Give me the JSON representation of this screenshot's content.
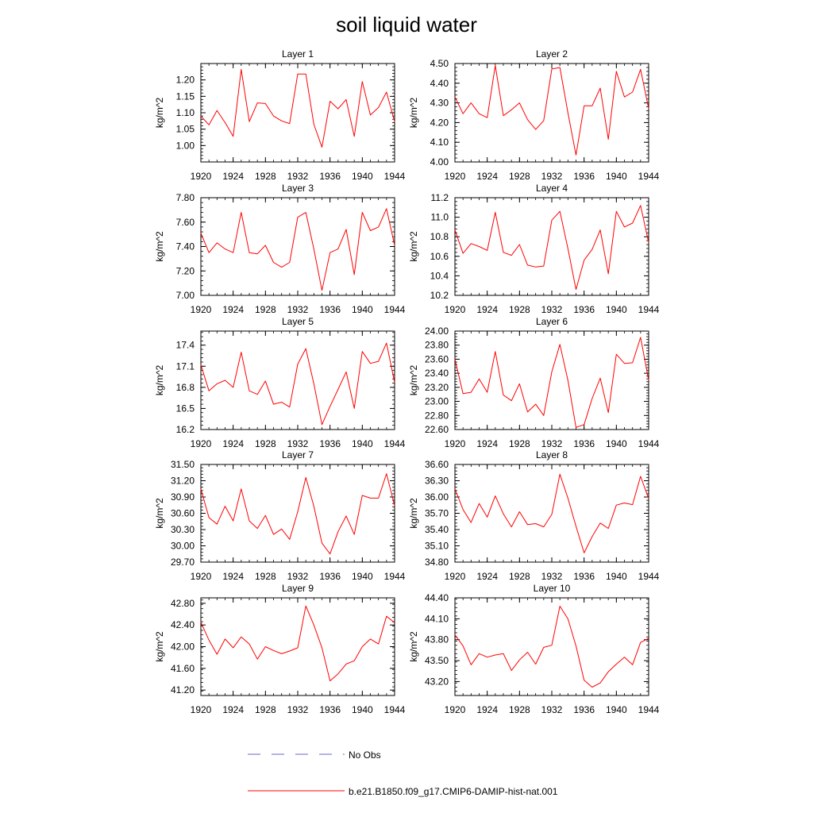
{
  "title": "soil liquid water",
  "colors": {
    "model": "#ff0000",
    "obs": "#6464c8",
    "axis": "#000000"
  },
  "legend": {
    "obs_label": "No Obs",
    "model_label": "b.e21.B1850.f09_g17.CMIP6-DAMIP-hist-nat.001"
  },
  "chart_data": [
    {
      "type": "line",
      "title": "Layer 1",
      "ylabel": "kg/m^2",
      "xlim": [
        1920,
        1944
      ],
      "xticks": [
        1920,
        1924,
        1928,
        1932,
        1936,
        1940,
        1944
      ],
      "ylim": [
        0.95,
        1.25
      ],
      "yticks": [
        "1.00",
        "1.05",
        "1.10",
        "1.15",
        "1.20"
      ],
      "yminor": 0.01,
      "series": [
        {
          "x": [
            1920,
            1921,
            1922,
            1923,
            1924,
            1925,
            1926,
            1927,
            1928,
            1929,
            1930,
            1931,
            1932,
            1933,
            1934,
            1935,
            1936,
            1937,
            1938,
            1939,
            1940,
            1941,
            1942,
            1943,
            1944
          ],
          "values": [
            1.09,
            1.063,
            1.107,
            1.07,
            1.028,
            1.232,
            1.073,
            1.13,
            1.128,
            1.09,
            1.075,
            1.067,
            1.218,
            1.218,
            1.065,
            0.995,
            1.135,
            1.112,
            1.14,
            1.028,
            1.195,
            1.093,
            1.116,
            1.163,
            1.073
          ]
        }
      ]
    },
    {
      "type": "line",
      "title": "Layer 2",
      "ylabel": "kg/m^2",
      "xlim": [
        1920,
        1944
      ],
      "xticks": [
        1920,
        1924,
        1928,
        1932,
        1936,
        1940,
        1944
      ],
      "ylim": [
        4.0,
        4.5
      ],
      "yticks": [
        "4.00",
        "4.10",
        "4.20",
        "4.30",
        "4.40",
        "4.50"
      ],
      "yminor": 0.02,
      "series": [
        {
          "x": [
            1920,
            1921,
            1922,
            1923,
            1924,
            1925,
            1926,
            1927,
            1928,
            1929,
            1930,
            1931,
            1932,
            1933,
            1934,
            1935,
            1936,
            1937,
            1938,
            1939,
            1940,
            1941,
            1942,
            1943,
            1944
          ],
          "values": [
            4.33,
            4.245,
            4.3,
            4.245,
            4.225,
            4.49,
            4.235,
            4.265,
            4.3,
            4.215,
            4.165,
            4.21,
            4.472,
            4.48,
            4.25,
            4.035,
            4.285,
            4.285,
            4.375,
            4.115,
            4.46,
            4.33,
            4.355,
            4.47,
            4.27
          ]
        }
      ]
    },
    {
      "type": "line",
      "title": "Layer 3",
      "ylabel": "kg/m^2",
      "xlim": [
        1920,
        1944
      ],
      "xticks": [
        1920,
        1924,
        1928,
        1932,
        1936,
        1940,
        1944
      ],
      "ylim": [
        7.0,
        7.8
      ],
      "yticks": [
        "7.00",
        "7.20",
        "7.40",
        "7.60",
        "7.80"
      ],
      "yminor": 0.04,
      "series": [
        {
          "x": [
            1920,
            1921,
            1922,
            1923,
            1924,
            1925,
            1926,
            1927,
            1928,
            1929,
            1930,
            1931,
            1932,
            1933,
            1934,
            1935,
            1936,
            1937,
            1938,
            1939,
            1940,
            1941,
            1942,
            1943,
            1944
          ],
          "values": [
            7.51,
            7.35,
            7.43,
            7.38,
            7.35,
            7.68,
            7.35,
            7.34,
            7.41,
            7.27,
            7.23,
            7.27,
            7.64,
            7.68,
            7.38,
            7.04,
            7.35,
            7.38,
            7.54,
            7.17,
            7.68,
            7.53,
            7.56,
            7.71,
            7.41
          ]
        }
      ]
    },
    {
      "type": "line",
      "title": "Layer 4",
      "ylabel": "kg/m^2",
      "xlim": [
        1920,
        1944
      ],
      "xticks": [
        1920,
        1924,
        1928,
        1932,
        1936,
        1940,
        1944
      ],
      "ylim": [
        10.2,
        11.2
      ],
      "yticks": [
        "10.2",
        "10.4",
        "10.6",
        "10.8",
        "11.0",
        "11.2"
      ],
      "yminor": 0.04,
      "series": [
        {
          "x": [
            1920,
            1921,
            1922,
            1923,
            1924,
            1925,
            1926,
            1927,
            1928,
            1929,
            1930,
            1931,
            1932,
            1933,
            1934,
            1935,
            1936,
            1937,
            1938,
            1939,
            1940,
            1941,
            1942,
            1943,
            1944
          ],
          "values": [
            10.87,
            10.63,
            10.73,
            10.7,
            10.66,
            11.05,
            10.64,
            10.61,
            10.72,
            10.51,
            10.49,
            10.5,
            10.97,
            11.06,
            10.68,
            10.26,
            10.56,
            10.67,
            10.87,
            10.42,
            11.06,
            10.9,
            10.94,
            11.12,
            10.74
          ]
        }
      ]
    },
    {
      "type": "line",
      "title": "Layer 5",
      "ylabel": "kg/m^2",
      "xlim": [
        1920,
        1944
      ],
      "xticks": [
        1920,
        1924,
        1928,
        1932,
        1936,
        1940,
        1944
      ],
      "ylim": [
        16.2,
        17.6
      ],
      "yticks": [
        "16.2",
        "16.5",
        "16.8",
        "17.1",
        "17.4"
      ],
      "yminor": 0.06,
      "series": [
        {
          "x": [
            1920,
            1921,
            1922,
            1923,
            1924,
            1925,
            1926,
            1927,
            1928,
            1929,
            1930,
            1931,
            1932,
            1933,
            1934,
            1935,
            1936,
            1937,
            1938,
            1939,
            1940,
            1941,
            1942,
            1943,
            1944
          ],
          "values": [
            17.12,
            16.75,
            16.85,
            16.9,
            16.8,
            17.3,
            16.75,
            16.7,
            16.89,
            16.56,
            16.59,
            16.52,
            17.13,
            17.35,
            16.85,
            16.27,
            16.53,
            16.77,
            17.02,
            16.5,
            17.31,
            17.14,
            17.17,
            17.43,
            16.87
          ]
        }
      ]
    },
    {
      "type": "line",
      "title": "Layer 6",
      "ylabel": "kg/m^2",
      "xlim": [
        1920,
        1944
      ],
      "xticks": [
        1920,
        1924,
        1928,
        1932,
        1936,
        1940,
        1944
      ],
      "ylim": [
        22.6,
        24.0
      ],
      "yticks": [
        "22.60",
        "22.80",
        "23.00",
        "23.20",
        "23.40",
        "23.60",
        "23.80",
        "24.00"
      ],
      "yminor": 0.04,
      "series": [
        {
          "x": [
            1920,
            1921,
            1922,
            1923,
            1924,
            1925,
            1926,
            1927,
            1928,
            1929,
            1930,
            1931,
            1932,
            1933,
            1934,
            1935,
            1936,
            1937,
            1938,
            1939,
            1940,
            1941,
            1942,
            1943,
            1944
          ],
          "values": [
            23.6,
            23.11,
            23.13,
            23.32,
            23.13,
            23.71,
            23.09,
            23.01,
            23.25,
            22.85,
            22.96,
            22.8,
            23.42,
            23.81,
            23.3,
            22.63,
            22.67,
            23.04,
            23.33,
            22.84,
            23.67,
            23.54,
            23.55,
            23.91,
            23.3
          ]
        }
      ]
    },
    {
      "type": "line",
      "title": "Layer 7",
      "ylabel": "kg/m^2",
      "xlim": [
        1920,
        1944
      ],
      "xticks": [
        1920,
        1924,
        1928,
        1932,
        1936,
        1940,
        1944
      ],
      "ylim": [
        29.7,
        31.5
      ],
      "yticks": [
        "29.70",
        "30.00",
        "30.30",
        "30.60",
        "30.90",
        "31.20",
        "31.50"
      ],
      "yminor": 0.06,
      "series": [
        {
          "x": [
            1920,
            1921,
            1922,
            1923,
            1924,
            1925,
            1926,
            1927,
            1928,
            1929,
            1930,
            1931,
            1932,
            1933,
            1934,
            1935,
            1936,
            1937,
            1938,
            1939,
            1940,
            1941,
            1942,
            1943,
            1944
          ],
          "values": [
            31.05,
            30.52,
            30.4,
            30.73,
            30.46,
            31.05,
            30.46,
            30.32,
            30.56,
            30.21,
            30.31,
            30.12,
            30.63,
            31.26,
            30.73,
            30.05,
            29.85,
            30.26,
            30.55,
            30.21,
            30.93,
            30.88,
            30.88,
            31.33,
            30.74
          ]
        }
      ]
    },
    {
      "type": "line",
      "title": "Layer 8",
      "ylabel": "kg/m^2",
      "xlim": [
        1920,
        1944
      ],
      "xticks": [
        1920,
        1924,
        1928,
        1932,
        1936,
        1940,
        1944
      ],
      "ylim": [
        34.8,
        36.6
      ],
      "yticks": [
        "34.80",
        "35.10",
        "35.40",
        "35.70",
        "36.00",
        "36.30",
        "36.60"
      ],
      "yminor": 0.06,
      "series": [
        {
          "x": [
            1920,
            1921,
            1922,
            1923,
            1924,
            1925,
            1926,
            1927,
            1928,
            1929,
            1930,
            1931,
            1932,
            1933,
            1934,
            1935,
            1936,
            1937,
            1938,
            1939,
            1940,
            1941,
            1942,
            1943,
            1944
          ],
          "values": [
            36.15,
            35.77,
            35.53,
            35.88,
            35.63,
            36.02,
            35.69,
            35.45,
            35.73,
            35.49,
            35.51,
            35.45,
            35.68,
            36.42,
            35.98,
            35.46,
            34.97,
            35.27,
            35.52,
            35.42,
            35.85,
            35.89,
            35.86,
            36.38,
            35.97
          ]
        }
      ]
    },
    {
      "type": "line",
      "title": "Layer 9",
      "ylabel": "kg/m^2",
      "xlim": [
        1920,
        1944
      ],
      "xticks": [
        1920,
        1924,
        1928,
        1932,
        1936,
        1940,
        1944
      ],
      "ylim": [
        41.1,
        42.9
      ],
      "yticks": [
        "41.20",
        "41.60",
        "42.00",
        "42.40",
        "42.80"
      ],
      "yminor": 0.08,
      "series": [
        {
          "x": [
            1920,
            1921,
            1922,
            1923,
            1924,
            1925,
            1926,
            1927,
            1928,
            1929,
            1930,
            1931,
            1932,
            1933,
            1934,
            1935,
            1936,
            1937,
            1938,
            1939,
            1940,
            1941,
            1942,
            1943,
            1944
          ],
          "values": [
            42.45,
            42.12,
            41.86,
            42.14,
            41.98,
            42.18,
            42.05,
            41.77,
            42.0,
            41.93,
            41.87,
            41.92,
            41.98,
            42.75,
            42.4,
            41.98,
            41.37,
            41.5,
            41.68,
            41.74,
            42.0,
            42.14,
            42.05,
            42.56,
            42.44
          ]
        }
      ]
    },
    {
      "type": "line",
      "title": "Layer 10",
      "ylabel": "kg/m^2",
      "xlim": [
        1920,
        1944
      ],
      "xticks": [
        1920,
        1924,
        1928,
        1932,
        1936,
        1940,
        1944
      ],
      "ylim": [
        43.0,
        44.4
      ],
      "yticks": [
        "43.20",
        "43.50",
        "43.80",
        "44.10",
        "44.40"
      ],
      "yminor": 0.06,
      "series": [
        {
          "x": [
            1920,
            1921,
            1922,
            1923,
            1924,
            1925,
            1926,
            1927,
            1928,
            1929,
            1930,
            1931,
            1932,
            1933,
            1934,
            1935,
            1936,
            1937,
            1938,
            1939,
            1940,
            1941,
            1942,
            1943,
            1944
          ],
          "values": [
            43.87,
            43.71,
            43.44,
            43.6,
            43.55,
            43.58,
            43.6,
            43.36,
            43.51,
            43.62,
            43.45,
            43.69,
            43.72,
            44.28,
            44.1,
            43.71,
            43.22,
            43.12,
            43.18,
            43.34,
            43.45,
            43.55,
            43.44,
            43.76,
            43.82
          ]
        }
      ]
    }
  ]
}
